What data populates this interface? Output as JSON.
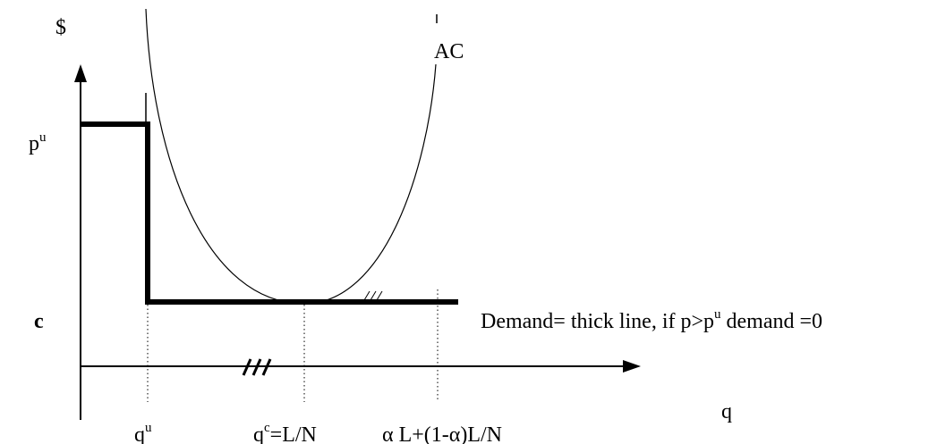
{
  "y_axis_label": "$",
  "x_axis_label": "q",
  "price_level_label": {
    "base": "p",
    "sup": "u"
  },
  "cost_level_label": "c",
  "curve_label": "AC",
  "x_ticks": {
    "qu": {
      "base": "q",
      "sup": "u"
    },
    "qc": {
      "base": "q",
      "sup": "c",
      "suffix": "=L/N"
    },
    "alpha": "α L+(1-α)L/N"
  },
  "break_mark": "///",
  "demand_note": {
    "before": "Demand= thick line, if p>p",
    "sup": "u",
    "after": " demand =0"
  }
}
